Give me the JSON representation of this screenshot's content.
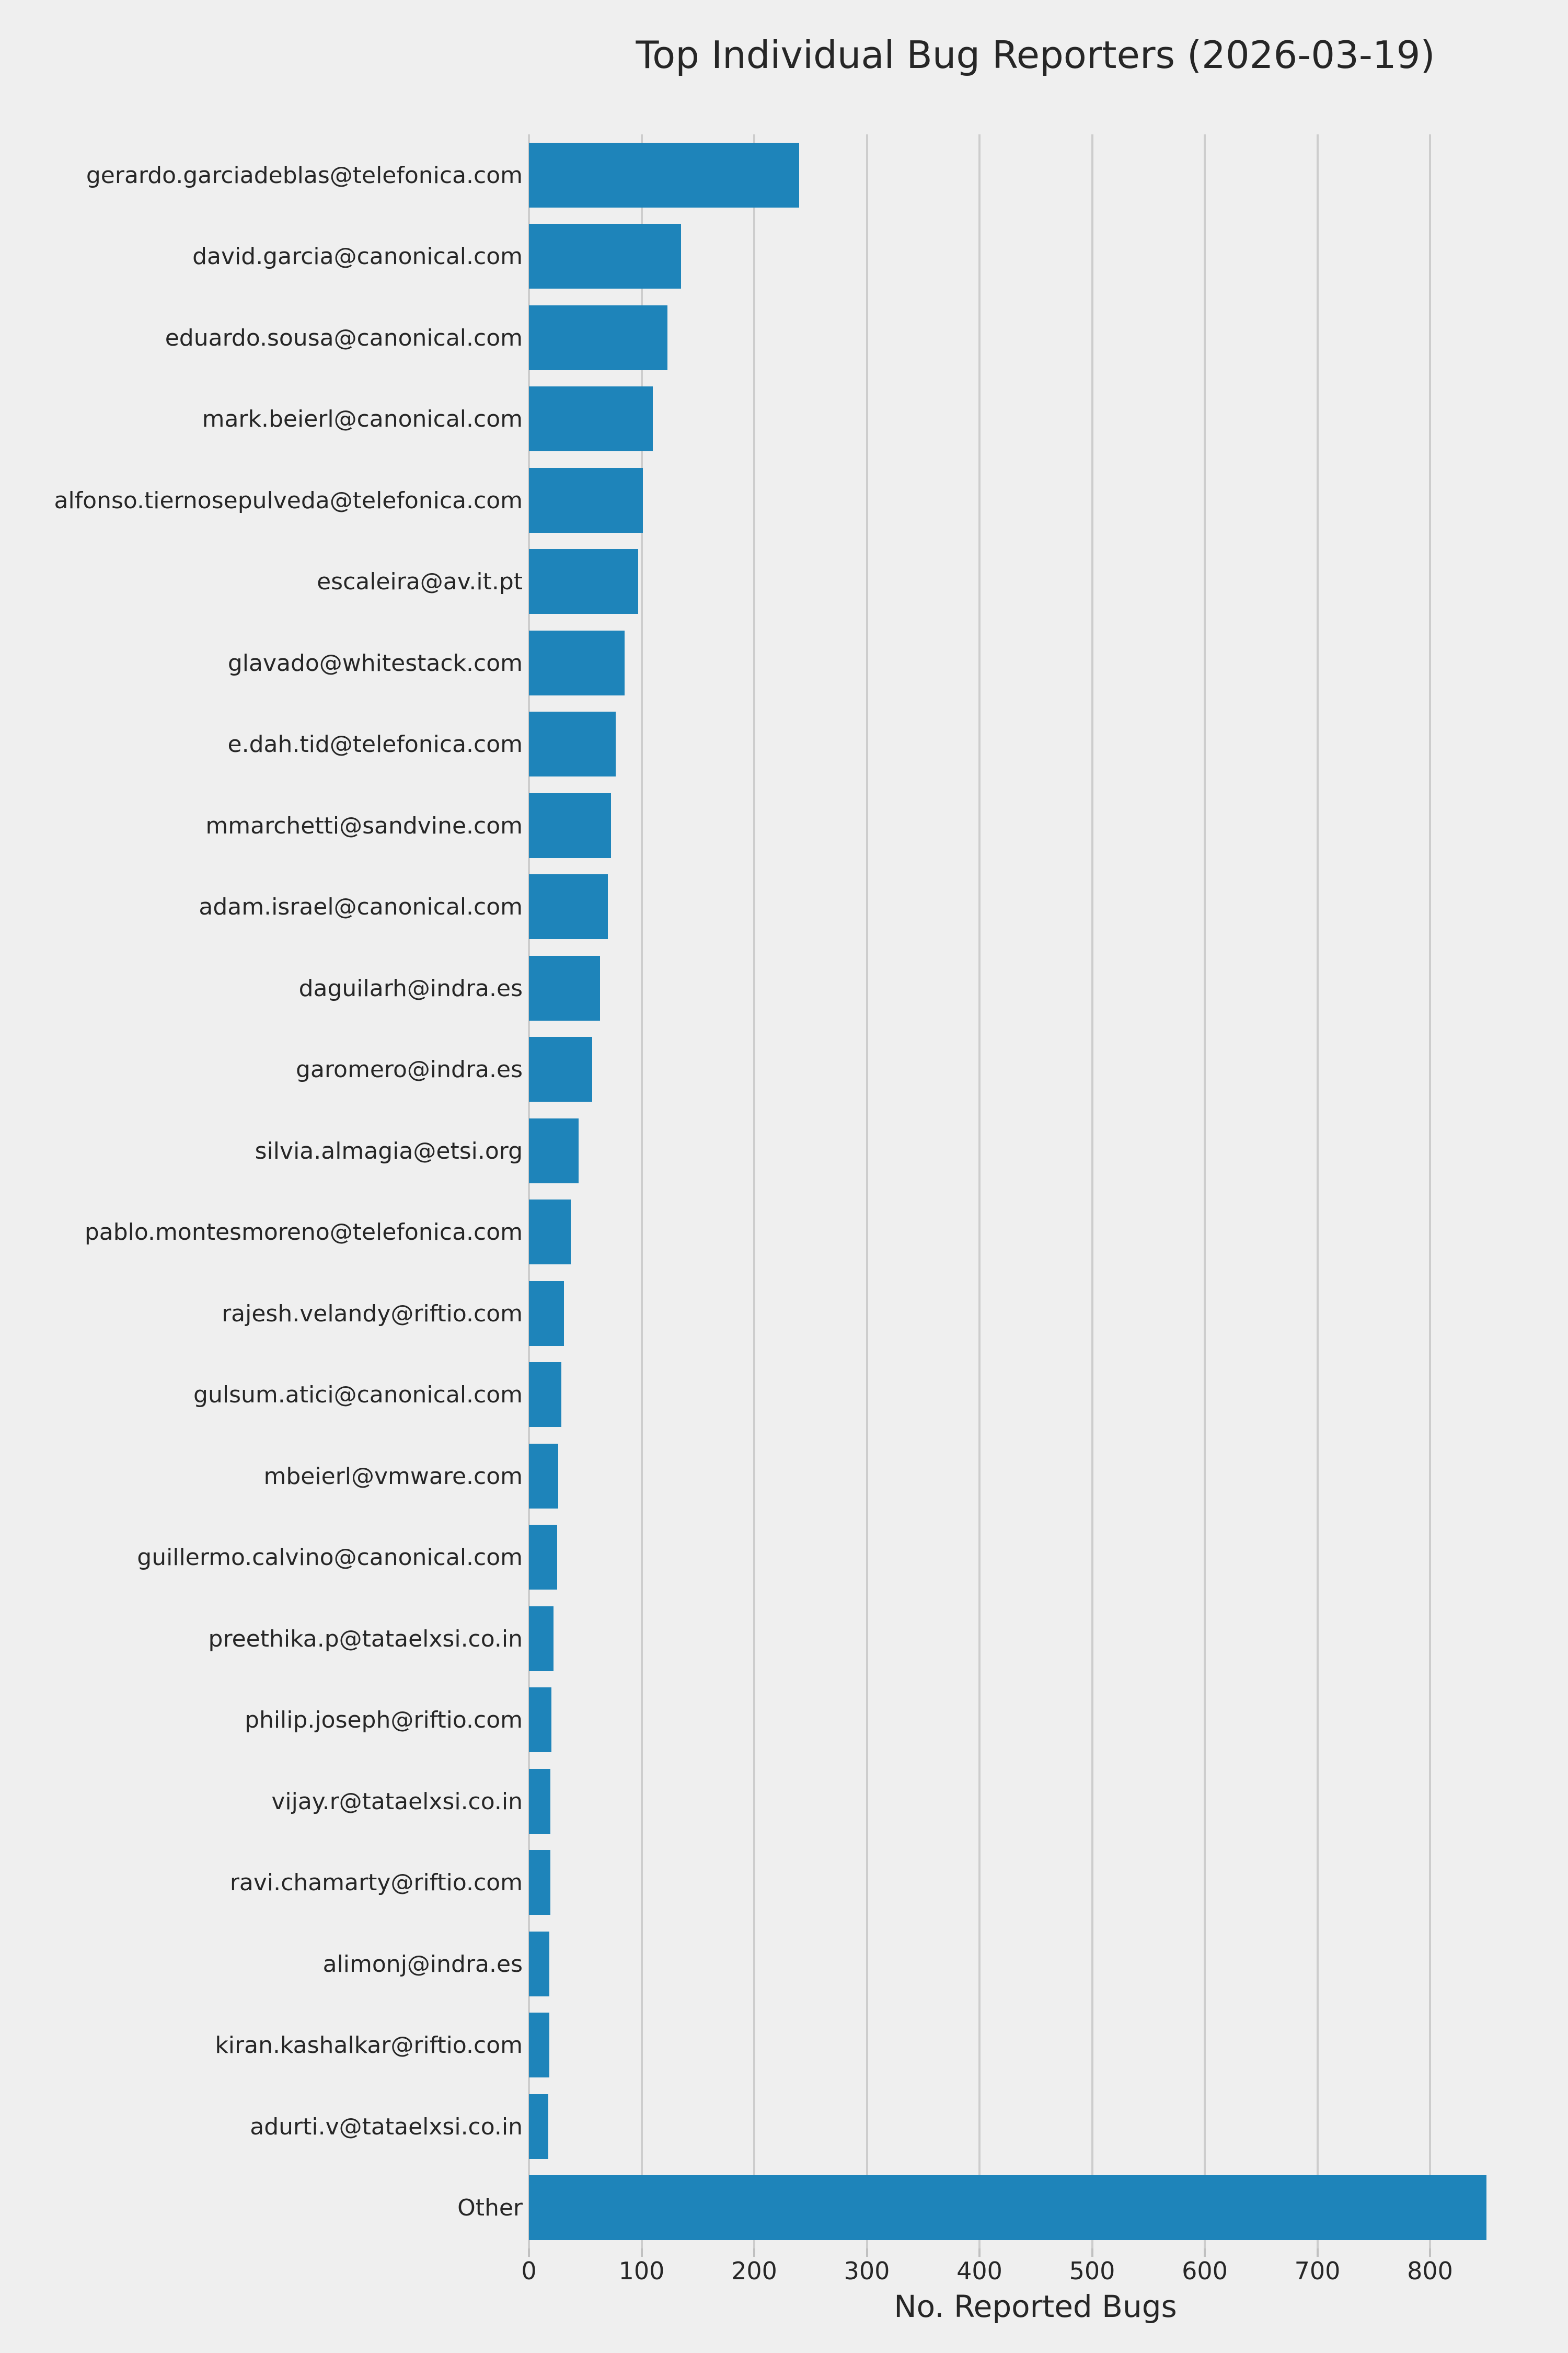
{
  "chart_data": {
    "type": "bar",
    "orientation": "horizontal",
    "title": "Top Individual Bug Reporters (2026-03-19)",
    "xlabel": "No. Reported Bugs",
    "ylabel": "",
    "categories": [
      "gerardo.garciadeblas@telefonica.com",
      "david.garcia@canonical.com",
      "eduardo.sousa@canonical.com",
      "mark.beierl@canonical.com",
      "alfonso.tiernosepulveda@telefonica.com",
      "escaleira@av.it.pt",
      "glavado@whitestack.com",
      "e.dah.tid@telefonica.com",
      "mmarchetti@sandvine.com",
      "adam.israel@canonical.com",
      "daguilarh@indra.es",
      "garomero@indra.es",
      "silvia.almagia@etsi.org",
      "pablo.montesmoreno@telefonica.com",
      "rajesh.velandy@riftio.com",
      "gulsum.atici@canonical.com",
      "mbeierl@vmware.com",
      "guillermo.calvino@canonical.com",
      "preethika.p@tataelxsi.co.in",
      "philip.joseph@riftio.com",
      "vijay.r@tataelxsi.co.in",
      "ravi.chamarty@riftio.com",
      "alimonj@indra.es",
      "kiran.kashalkar@riftio.com",
      "adurti.v@tataelxsi.co.in",
      "Other"
    ],
    "values": [
      240,
      135,
      123,
      110,
      101,
      97,
      85,
      77,
      73,
      70,
      63,
      56,
      44,
      37,
      31,
      29,
      26,
      25,
      22,
      20,
      19,
      19,
      18,
      18,
      17,
      850
    ],
    "x_ticks": [
      0,
      100,
      200,
      300,
      400,
      500,
      600,
      700,
      800
    ],
    "xlim": [
      0,
      866
    ],
    "grid": true,
    "legend": false,
    "colors": {
      "bar": "#1e84ba",
      "background": "#efefef",
      "gridline": "#cdcdcd",
      "tick_mark": "#c0c0c0",
      "text": "#262626"
    }
  }
}
